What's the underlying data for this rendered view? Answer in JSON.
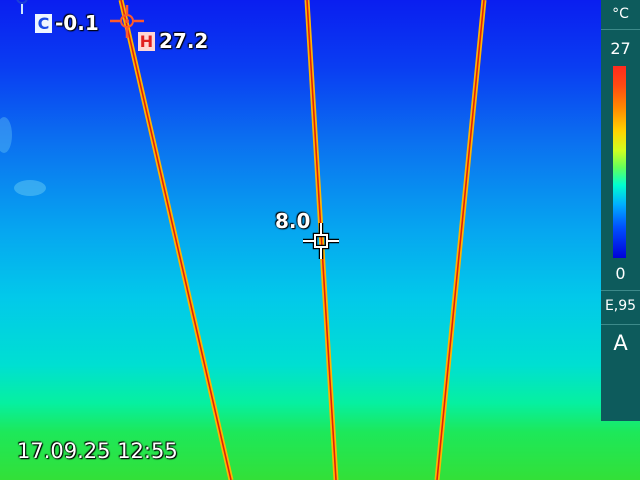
{
  "readouts": {
    "cold_badge": "C",
    "cold_value": "-0.1",
    "hot_badge": "H",
    "hot_value": "27.2",
    "center_value": "8.0"
  },
  "timestamp": "17.09.25 12:55",
  "scale": {
    "unit": "°C",
    "max": "27",
    "min": "0",
    "emissivity": "E,95",
    "range_mode": "A"
  },
  "colors": {
    "cold_marker": "#cfe8ff",
    "hot_marker": "#ff5a2a",
    "sidebar_bg": "#0d5b5c"
  }
}
